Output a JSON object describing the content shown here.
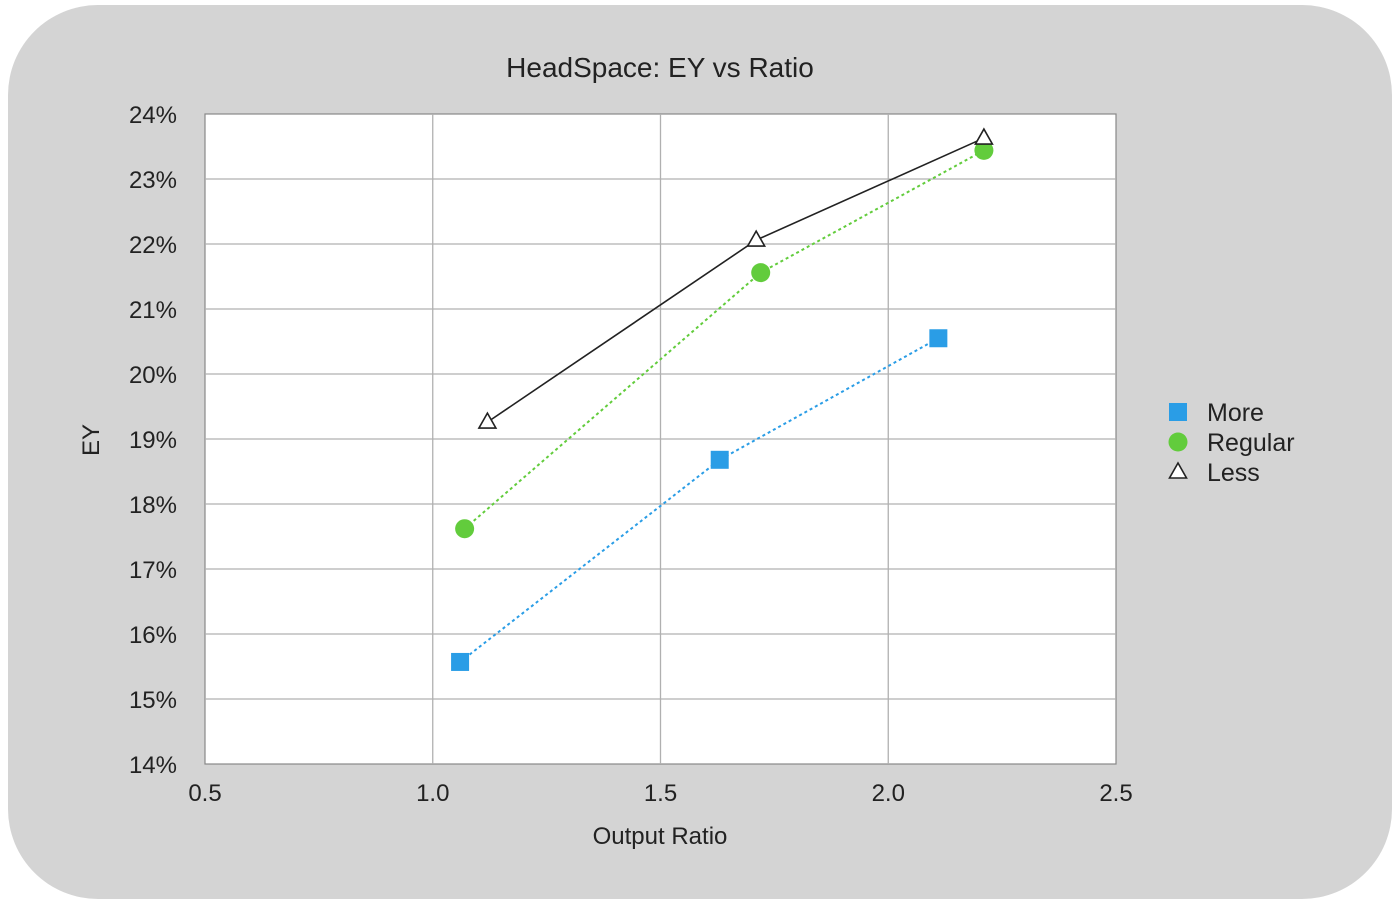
{
  "chart_data": {
    "type": "scatter",
    "title": "HeadSpace: EY vs Ratio",
    "xlabel": "Output Ratio",
    "ylabel": "EY",
    "xlim": [
      0.5,
      2.5
    ],
    "ylim": [
      14,
      24
    ],
    "x_ticks": [
      "0.5",
      "1.0",
      "1.5",
      "2.0",
      "2.5"
    ],
    "y_ticks": [
      "24%",
      "23%",
      "22%",
      "21%",
      "20%",
      "19%",
      "18%",
      "17%",
      "16%",
      "15%",
      "14%"
    ],
    "grid": true,
    "legend_position": "right",
    "series": [
      {
        "name": "More",
        "marker": "square",
        "line": "dotted",
        "color": "#2a9de6",
        "points": [
          [
            1.06,
            15.57
          ],
          [
            1.63,
            18.68
          ],
          [
            2.11,
            20.55
          ]
        ]
      },
      {
        "name": "Regular",
        "marker": "circle",
        "line": "dotted",
        "color": "#62cc3c",
        "points": [
          [
            1.07,
            17.62
          ],
          [
            1.72,
            21.56
          ],
          [
            2.21,
            23.44
          ]
        ]
      },
      {
        "name": "Less",
        "marker": "triangle",
        "line": "solid",
        "color": "#222222",
        "points": [
          [
            1.12,
            19.26
          ],
          [
            1.71,
            22.06
          ],
          [
            2.21,
            23.63
          ]
        ]
      }
    ]
  }
}
